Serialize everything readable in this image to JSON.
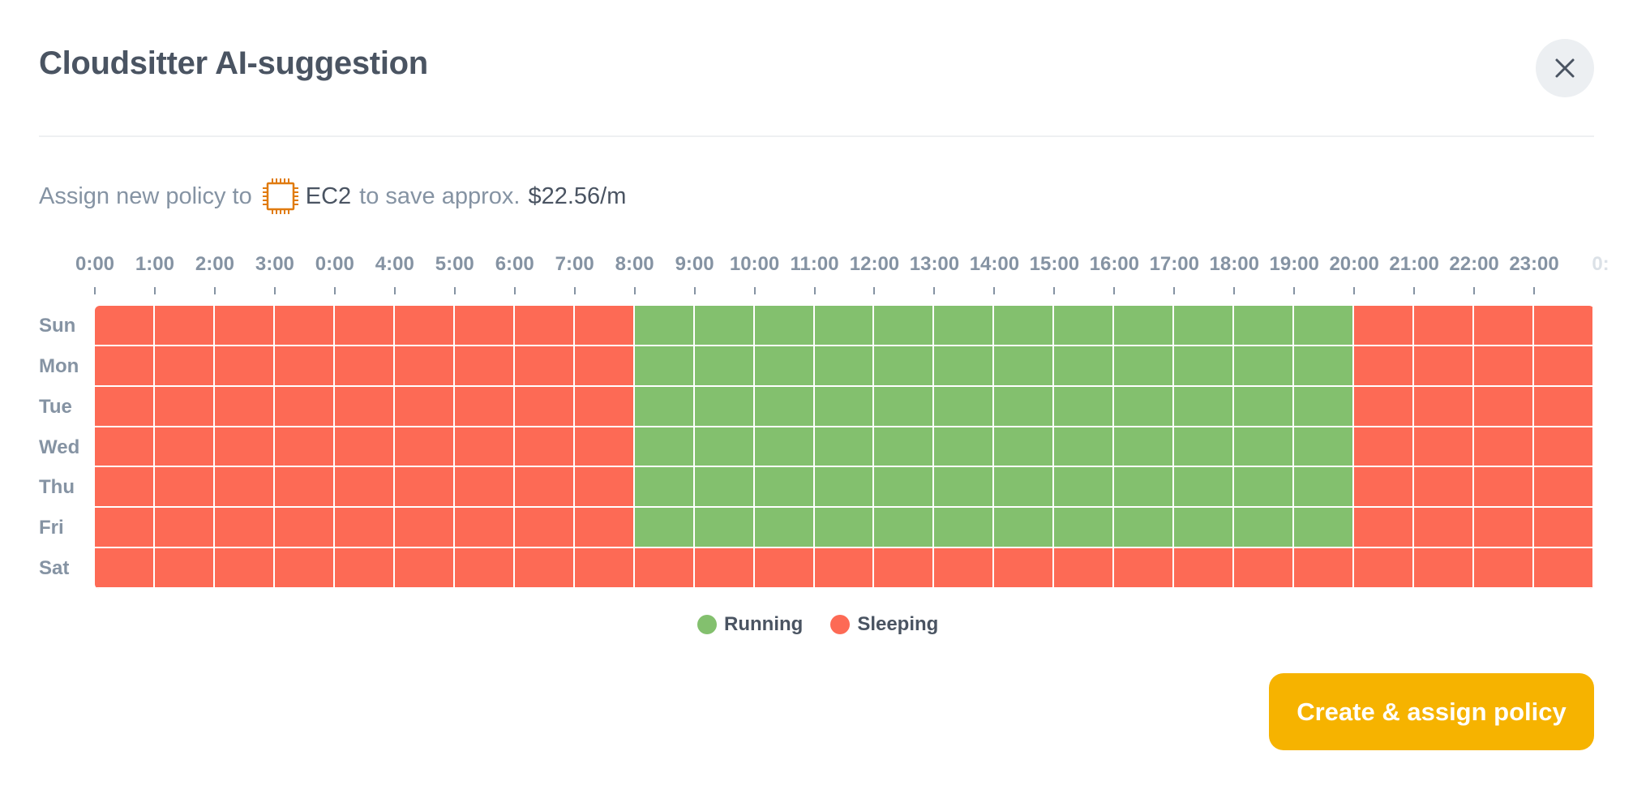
{
  "dialog": {
    "title": "Cloudsitter AI-suggestion",
    "close_icon": "close-icon"
  },
  "suggestion": {
    "prefix": "Assign new policy to",
    "resource_icon": "chip-icon",
    "resource_name": "EC2",
    "middle": "to save approx.",
    "amount": "$22.56/m"
  },
  "schedule": {
    "hour_labels": [
      "0:00",
      "1:00",
      "2:00",
      "3:00",
      "0:00",
      "4:00",
      "5:00",
      "6:00",
      "7:00",
      "8:00",
      "9:00",
      "10:00",
      "11:00",
      "12:00",
      "13:00",
      "14:00",
      "15:00",
      "16:00",
      "17:00",
      "18:00",
      "19:00",
      "20:00",
      "21:00",
      "22:00",
      "23:00",
      "0:"
    ],
    "days": [
      "Sun",
      "Mon",
      "Tue",
      "Wed",
      "Thu",
      "Fri",
      "Sat"
    ],
    "cells": [
      "SSSSSSSSSRRRRRRRRRRRRSSSS",
      "SSSSSSSSSRRRRRRRRRRRRSSSS",
      "SSSSSSSSSRRRRRRRRRRRRSSSS",
      "SSSSSSSSSRRRRRRRRRRRRSSSS",
      "SSSSSSSSSRRRRRRRRRRRRSSSS",
      "SSSSSSSSSRRRRRRRRRRRRSSSS",
      "SSSSSSSSSSSSSSSSSSSSSSSSS"
    ],
    "colors": {
      "running": "#83c06e",
      "sleeping": "#fd6a55"
    }
  },
  "legend": {
    "running": "Running",
    "sleeping": "Sleeping"
  },
  "actions": {
    "primary_label": "Create & assign policy"
  }
}
